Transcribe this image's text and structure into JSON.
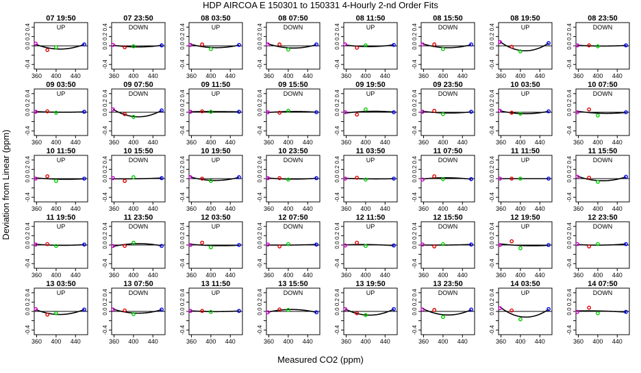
{
  "chart_data": {
    "type": "scatter",
    "title": "HDP   AIRCOA E   150301 to 150331   4-Hourly 2-nd Order Fits",
    "xlabel": "Measured CO2 (ppm)",
    "ylabel": "Deviation from Linear (ppm)",
    "xlim": [
      355,
      465
    ],
    "ylim": [
      -0.5,
      0.5
    ],
    "xticks": [
      360,
      400,
      440
    ],
    "xtick_labels": [
      "360",
      "400",
      "440"
    ],
    "yticks": [
      -0.4,
      -0.2,
      0.0,
      0.2,
      0.4
    ],
    "ytick_labels": [
      "-0.4",
      "",
      "0.0",
      "0.2",
      "0.4"
    ],
    "x_points": [
      358,
      382,
      400,
      458
    ],
    "point_colors": [
      "#cc00cc",
      "#dd0000",
      "#00cc00",
      "#0000ee"
    ],
    "panels": [
      {
        "title": "07 19:50",
        "label": "UP",
        "y": [
          0.05,
          -0.09,
          -0.03,
          0.03
        ]
      },
      {
        "title": "07 23:50",
        "label": "DOWN",
        "y": [
          0.02,
          -0.03,
          -0.01,
          0.01
        ]
      },
      {
        "title": "08 03:50",
        "label": "UP",
        "y": [
          0.02,
          0.03,
          -0.07,
          0.02
        ]
      },
      {
        "title": "08 07:50",
        "label": "DOWN",
        "y": [
          0.03,
          0.03,
          -0.08,
          0.03
        ]
      },
      {
        "title": "08 11:50",
        "label": "UP",
        "y": [
          0.03,
          -0.04,
          0.01,
          0.02
        ]
      },
      {
        "title": "08 15:50",
        "label": "DOWN",
        "y": [
          0.03,
          0.03,
          -0.07,
          0.03
        ]
      },
      {
        "title": "08 19:50",
        "label": "UP",
        "y": [
          0.08,
          -0.02,
          -0.12,
          0.06
        ]
      },
      {
        "title": "08 23:50",
        "label": "DOWN",
        "y": [
          0.01,
          0.01,
          -0.01,
          0.01
        ]
      },
      {
        "title": "09 03:50",
        "label": "UP",
        "y": [
          0.01,
          0.02,
          -0.01,
          0.01
        ]
      },
      {
        "title": "09 07:50",
        "label": "DOWN",
        "y": [
          0.06,
          -0.04,
          -0.1,
          0.04
        ]
      },
      {
        "title": "09 11:50",
        "label": "UP",
        "y": [
          0.01,
          0.02,
          0.01,
          0.01
        ]
      },
      {
        "title": "09 15:50",
        "label": "DOWN",
        "y": [
          0.0,
          -0.01,
          0.03,
          0.0
        ]
      },
      {
        "title": "09 19:50",
        "label": "UP",
        "y": [
          0.0,
          -0.05,
          0.06,
          0.0
        ]
      },
      {
        "title": "09 23:50",
        "label": "DOWN",
        "y": [
          0.01,
          0.03,
          -0.04,
          0.01
        ]
      },
      {
        "title": "10 03:50",
        "label": "UP",
        "y": [
          0.03,
          -0.01,
          -0.03,
          0.02
        ]
      },
      {
        "title": "10 07:50",
        "label": "DOWN",
        "y": [
          0.0,
          0.06,
          -0.07,
          0.0
        ]
      },
      {
        "title": "10 11:50",
        "label": "UP",
        "y": [
          0.0,
          0.05,
          -0.05,
          0.0
        ]
      },
      {
        "title": "10 15:50",
        "label": "DOWN",
        "y": [
          0.01,
          -0.05,
          0.03,
          0.01
        ]
      },
      {
        "title": "10 19:50",
        "label": "UP",
        "y": [
          0.03,
          0.0,
          -0.05,
          0.03
        ]
      },
      {
        "title": "10 23:50",
        "label": "DOWN",
        "y": [
          0.01,
          0.01,
          -0.02,
          0.01
        ]
      },
      {
        "title": "11 03:50",
        "label": "UP",
        "y": [
          0.0,
          0.02,
          -0.02,
          0.0
        ]
      },
      {
        "title": "11 07:50",
        "label": "DOWN",
        "y": [
          -0.02,
          0.05,
          -0.01,
          -0.01
        ]
      },
      {
        "title": "11 11:50",
        "label": "UP",
        "y": [
          0.0,
          0.0,
          0.0,
          0.0
        ]
      },
      {
        "title": "11 15:50",
        "label": "DOWN",
        "y": [
          0.04,
          0.02,
          -0.07,
          0.04
        ]
      },
      {
        "title": "11 19:50",
        "label": "UP",
        "y": [
          0.01,
          0.02,
          -0.02,
          0.01
        ]
      },
      {
        "title": "11 23:50",
        "label": "DOWN",
        "y": [
          -0.02,
          -0.02,
          0.05,
          -0.02
        ]
      },
      {
        "title": "12 03:50",
        "label": "UP",
        "y": [
          0.0,
          0.05,
          -0.05,
          0.0
        ]
      },
      {
        "title": "12 07:50",
        "label": "DOWN",
        "y": [
          0.01,
          -0.03,
          0.02,
          0.01
        ]
      },
      {
        "title": "12 11:50",
        "label": "UP",
        "y": [
          -0.01,
          0.05,
          -0.02,
          -0.01
        ]
      },
      {
        "title": "12 15:50",
        "label": "DOWN",
        "y": [
          0.01,
          -0.03,
          0.02,
          0.01
        ]
      },
      {
        "title": "12 19:50",
        "label": "UP",
        "y": [
          0.0,
          0.08,
          -0.07,
          0.0
        ]
      },
      {
        "title": "12 23:50",
        "label": "DOWN",
        "y": [
          0.02,
          -0.03,
          0.02,
          0.02
        ]
      },
      {
        "title": "13 03:50",
        "label": "UP",
        "y": [
          0.05,
          -0.07,
          -0.04,
          0.04
        ]
      },
      {
        "title": "13 07:50",
        "label": "DOWN",
        "y": [
          0.04,
          0.02,
          -0.06,
          0.04
        ]
      },
      {
        "title": "13 11:50",
        "label": "UP",
        "y": [
          0.01,
          0.01,
          -0.01,
          0.01
        ]
      },
      {
        "title": "13 15:50",
        "label": "DOWN",
        "y": [
          -0.02,
          0.04,
          0.03,
          -0.02
        ]
      },
      {
        "title": "13 19:50",
        "label": "UP",
        "y": [
          0.05,
          -0.04,
          -0.08,
          0.05
        ]
      },
      {
        "title": "13 23:50",
        "label": "DOWN",
        "y": [
          0.04,
          0.03,
          -0.12,
          0.04
        ]
      },
      {
        "title": "14 03:50",
        "label": "UP",
        "y": [
          0.07,
          0.02,
          -0.17,
          0.05
        ]
      },
      {
        "title": "14 07:50",
        "label": "DOWN",
        "y": [
          -0.01,
          0.08,
          -0.04,
          -0.01
        ]
      }
    ]
  }
}
